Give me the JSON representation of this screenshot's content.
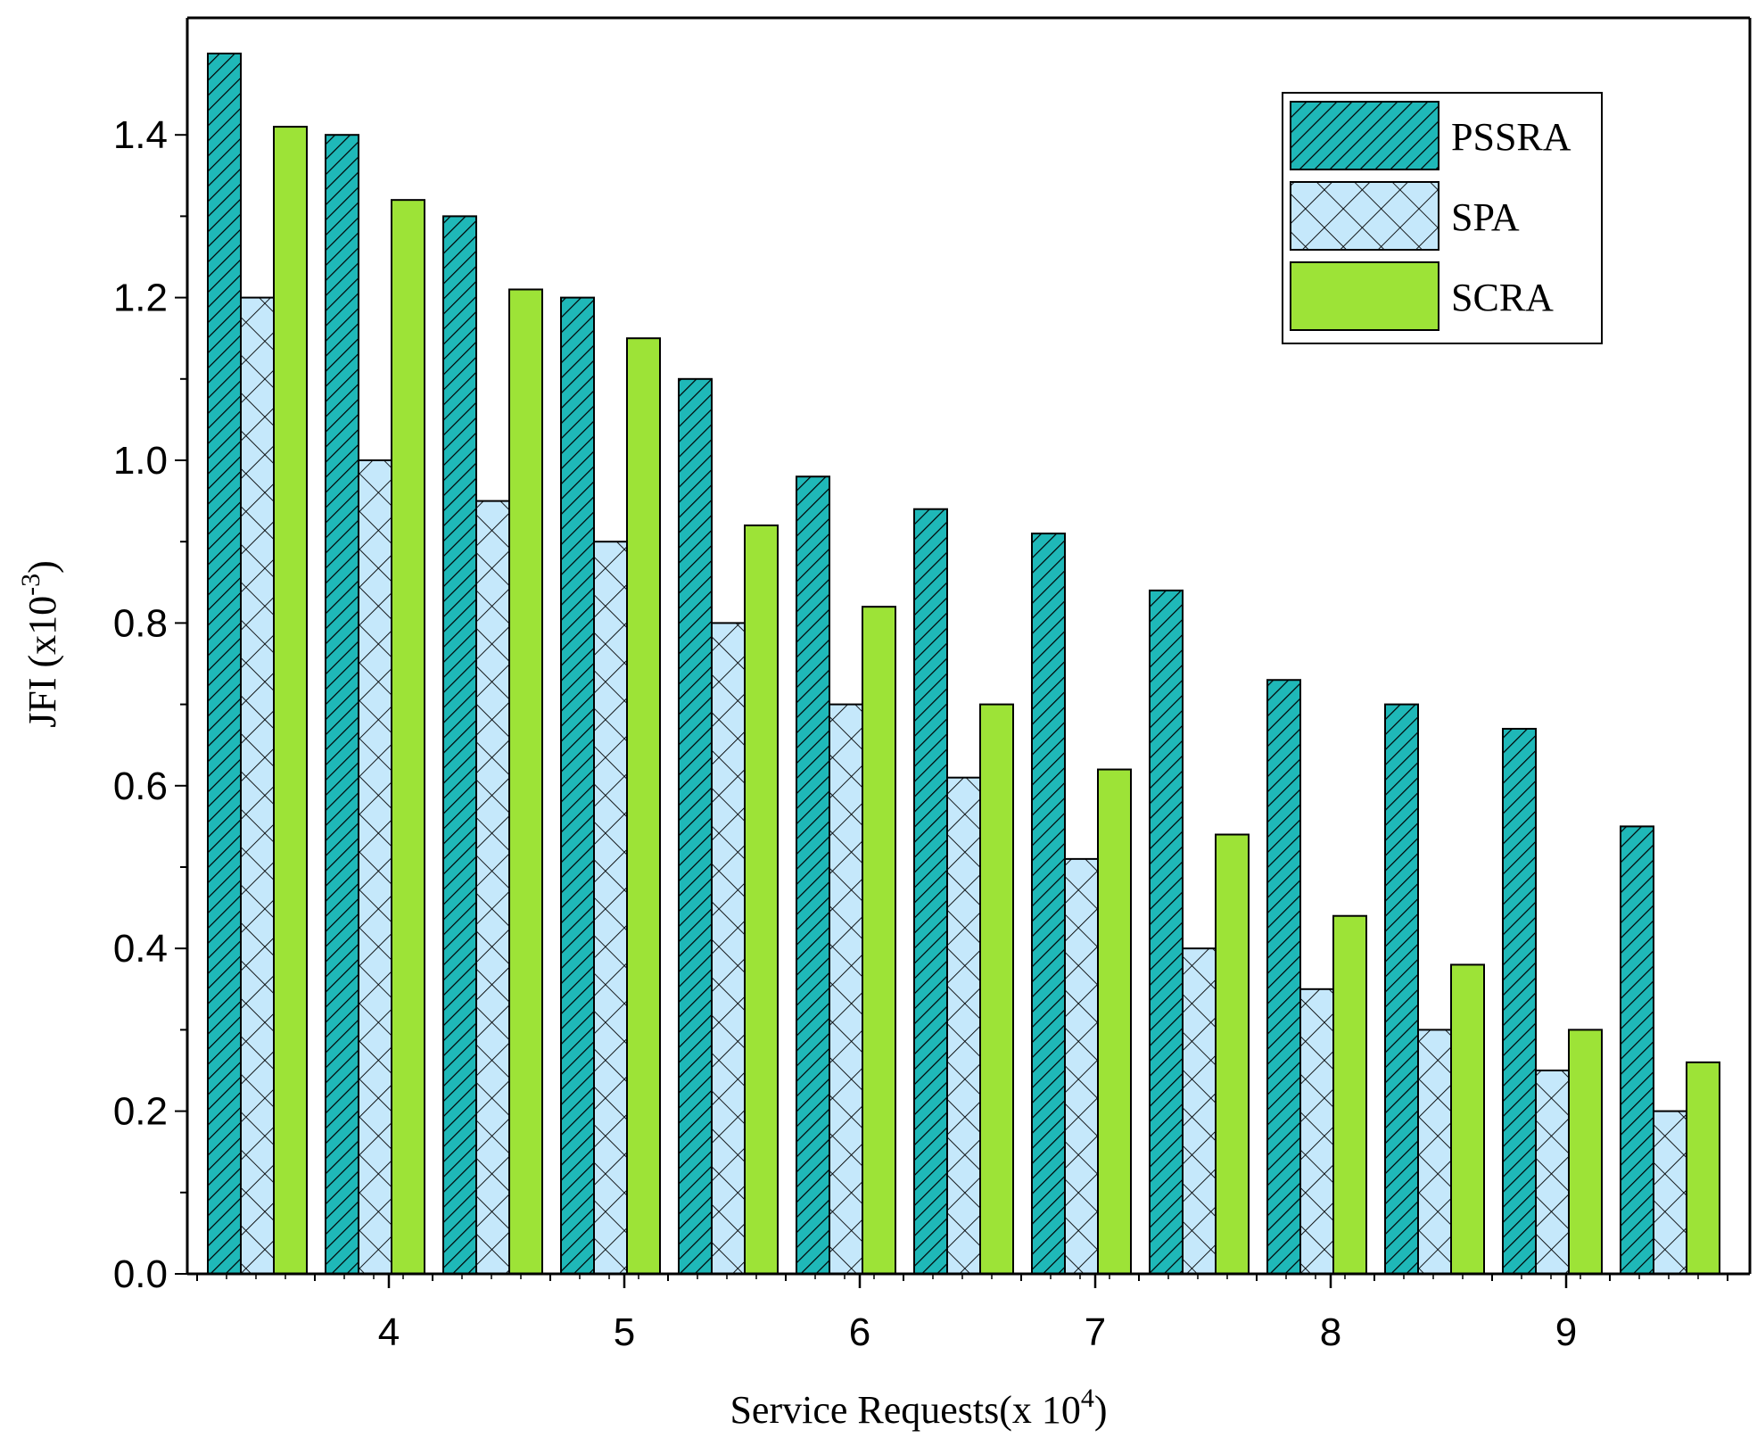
{
  "chart_data": {
    "type": "bar",
    "title": "",
    "xlabel": "Service Requests(x 10",
    "xlabel_sup": "4",
    "xlabel_close": ")",
    "ylabel": "JFI (x10",
    "ylabel_sup": "-3",
    "ylabel_close": ")",
    "ylim": [
      0,
      1.5
    ],
    "yticks": [
      "0.0",
      "0.2",
      "0.4",
      "0.6",
      "0.8",
      "1.0",
      "1.2",
      "1.4"
    ],
    "xticks": [
      {
        "label": "4",
        "at": 1
      },
      {
        "label": "5",
        "at": 3
      },
      {
        "label": "6",
        "at": 5
      },
      {
        "label": "7",
        "at": 7
      },
      {
        "label": "8",
        "at": 9
      },
      {
        "label": "9",
        "at": 11
      }
    ],
    "group_count": 13,
    "legend_position": "top-right",
    "series": [
      {
        "name": "PSSRA",
        "color": "#1fb8b8",
        "pattern": "diagonal-hatch",
        "values": [
          1.5,
          1.4,
          1.3,
          1.2,
          1.1,
          0.98,
          0.94,
          0.91,
          0.84,
          0.73,
          0.7,
          0.67,
          0.55
        ]
      },
      {
        "name": "SPA",
        "color": "#c5e8fb",
        "pattern": "cross-hatch",
        "values": [
          1.2,
          1.0,
          0.95,
          0.9,
          0.8,
          0.7,
          0.61,
          0.51,
          0.4,
          0.35,
          0.3,
          0.25,
          0.2
        ]
      },
      {
        "name": "SCRA",
        "color": "#9de337",
        "pattern": "solid",
        "values": [
          1.41,
          1.32,
          1.21,
          1.15,
          0.92,
          0.82,
          0.7,
          0.62,
          0.54,
          0.44,
          0.38,
          0.3,
          0.26
        ]
      }
    ]
  }
}
